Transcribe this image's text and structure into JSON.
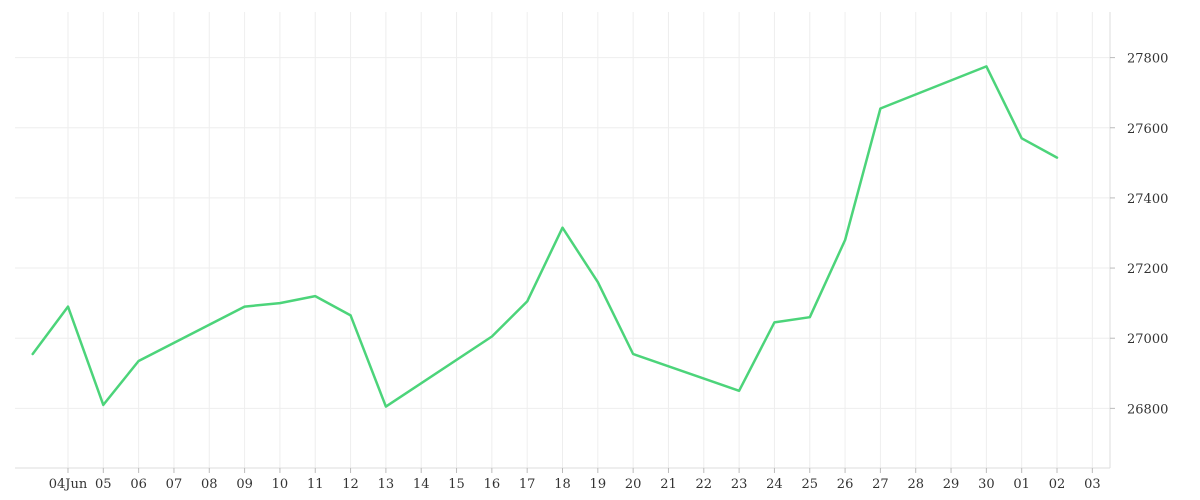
{
  "chart_data": {
    "type": "line",
    "x_tick_labels": [
      "04Jun",
      "05",
      "06",
      "07",
      "08",
      "09",
      "10",
      "11",
      "12",
      "13",
      "14",
      "15",
      "16",
      "17",
      "18",
      "19",
      "20",
      "21",
      "22",
      "23",
      "24",
      "25",
      "26",
      "27",
      "28",
      "29",
      "30",
      "01",
      "02",
      "03"
    ],
    "y_tick_labels": [
      "26800",
      "27000",
      "27200",
      "27400",
      "27600",
      "27800"
    ],
    "ylim": [
      26630,
      27930
    ],
    "x": [
      "2023-06-03",
      "2023-06-04",
      "2023-06-05",
      "2023-06-06",
      "2023-06-09",
      "2023-06-10",
      "2023-06-11",
      "2023-06-12",
      "2023-06-13",
      "2023-06-16",
      "2023-06-17",
      "2023-06-18",
      "2023-06-19",
      "2023-06-20",
      "2023-06-23",
      "2023-06-24",
      "2023-06-25",
      "2023-06-26",
      "2023-06-27",
      "2023-06-30",
      "2023-07-01",
      "2023-07-02"
    ],
    "series": [
      {
        "values": [
          26955,
          27090,
          26810,
          26935,
          27090,
          27100,
          27120,
          27065,
          26805,
          27005,
          27105,
          27315,
          27160,
          26955,
          26850,
          27045,
          27060,
          27280,
          27655,
          27775,
          27570,
          27515
        ],
        "color": "#4cd47a"
      }
    ],
    "xlim": [
      "2023-06-02T12:00:00",
      "2023-07-03T12:00:00"
    ],
    "grid": true,
    "y_axis_position": "right"
  }
}
